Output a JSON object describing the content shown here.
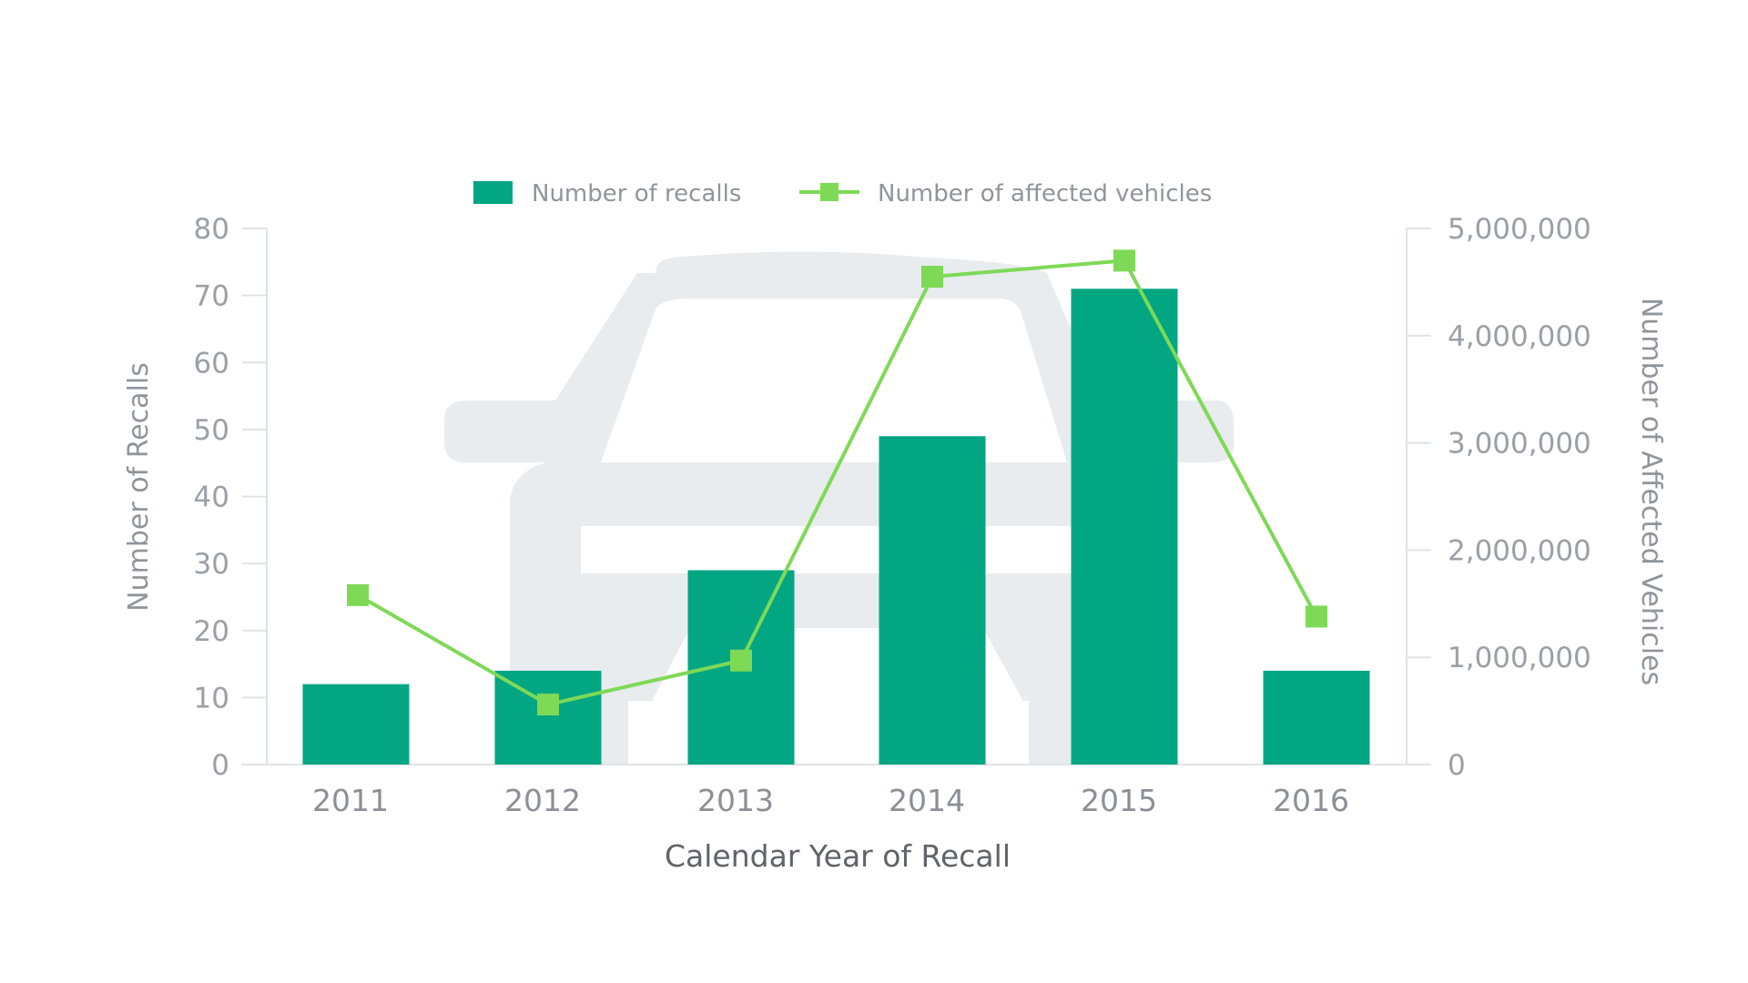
{
  "chart_data": {
    "type": "bar",
    "title": "",
    "xlabel": "Calendar Year of Recall",
    "ylabel": "Number of Recalls",
    "y2label": "Number of Affected Vehicles",
    "categories": [
      "2011",
      "2012",
      "2013",
      "2014",
      "2015",
      "2016"
    ],
    "series": [
      {
        "name": "Number of recalls",
        "type": "bar",
        "axis": "left",
        "color": "#02a683",
        "values": [
          12,
          14,
          29,
          49,
          71,
          14
        ]
      },
      {
        "name": "Number of affected vehicles",
        "type": "line",
        "axis": "right",
        "marker": "square",
        "color": "#7ed957",
        "values": [
          1580000,
          560000,
          970000,
          4550000,
          4700000,
          1380000
        ]
      }
    ],
    "ylim": [
      0,
      80
    ],
    "y2lim": [
      0,
      5000000
    ],
    "y_ticks": [
      "0",
      "10",
      "20",
      "30",
      "40",
      "50",
      "60",
      "70",
      "80"
    ],
    "y2_ticks": [
      "0",
      "1,000,000",
      "2,000,000",
      "3,000,000",
      "4,000,000",
      "5,000,000"
    ],
    "legend_position": "top",
    "grid": false,
    "background_icon": "car-silhouette"
  },
  "legend": {
    "bar_label": "Number of recalls",
    "line_label": "Number of affected vehicles"
  },
  "axes": {
    "x_title": "Calendar Year of Recall",
    "y_left_title": "Number of Recalls",
    "y_right_title": "Number of Affected Vehicles"
  },
  "colors": {
    "bar": "#02a683",
    "line": "#7ed957",
    "axis": "#dfe3e6",
    "car": "#e8ecef"
  }
}
